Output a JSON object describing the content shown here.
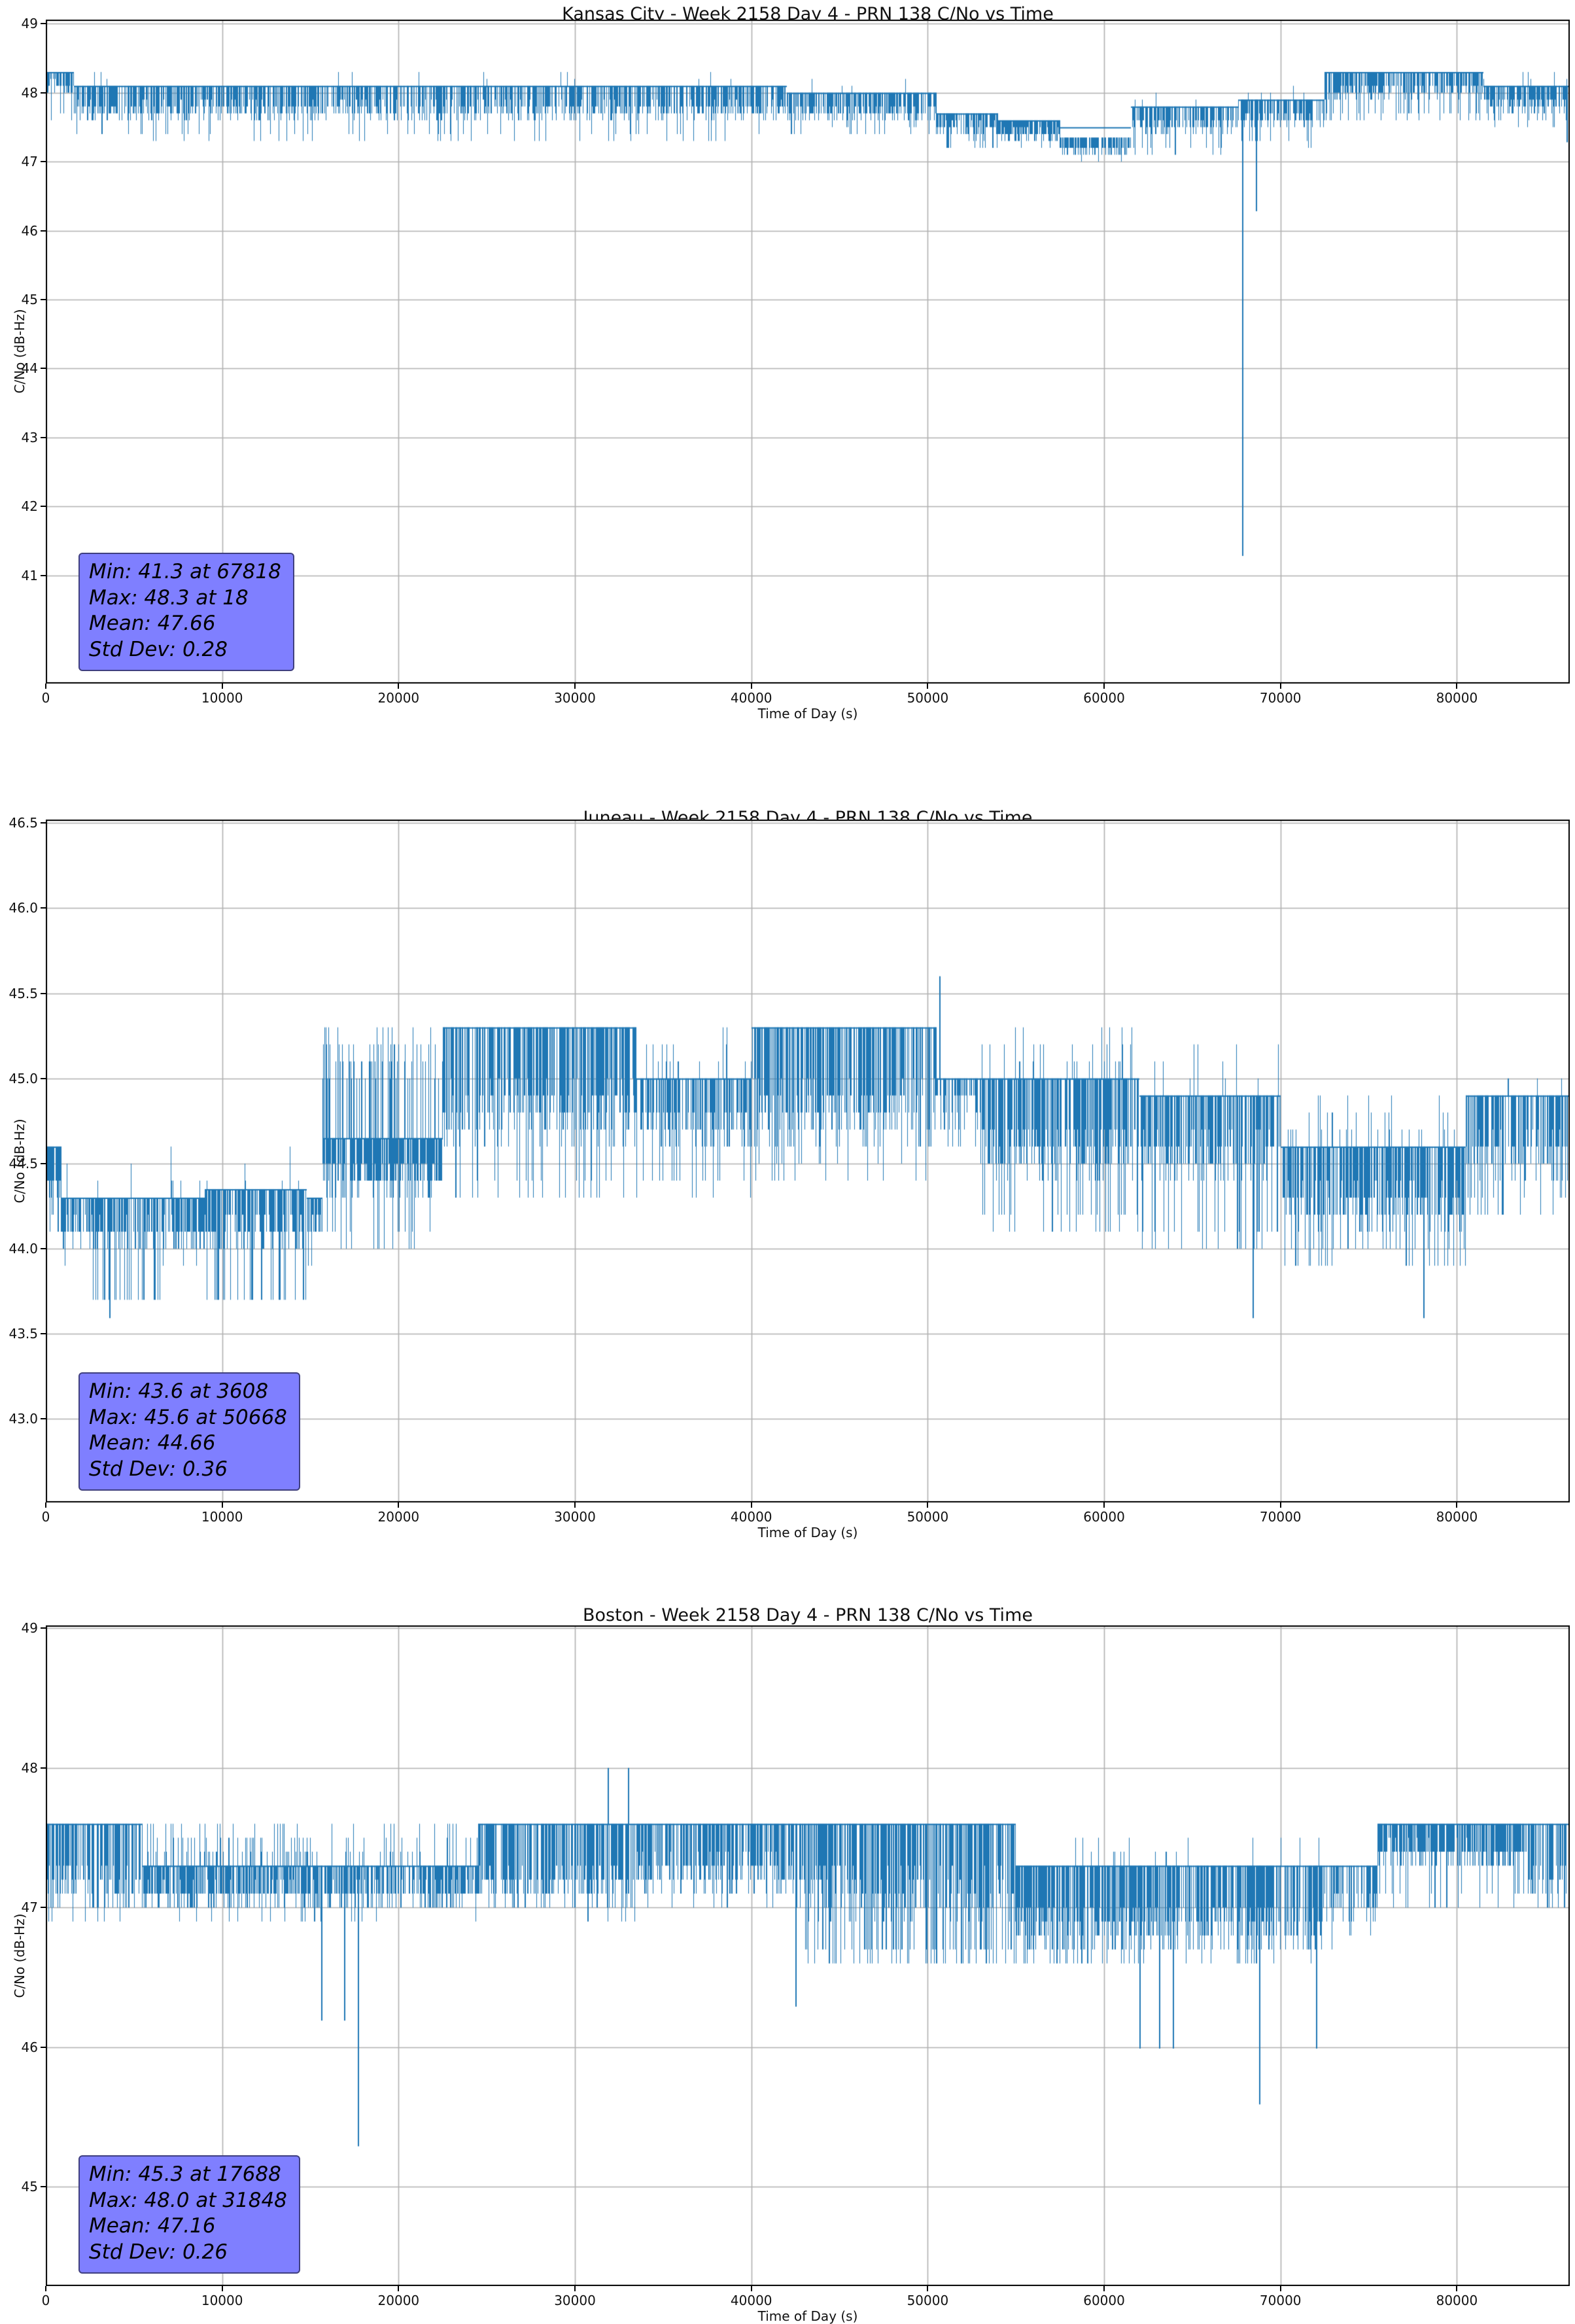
{
  "page": {
    "background": "#ffffff"
  },
  "chart_data": [
    {
      "type": "line",
      "title": "Kansas City - Week 2158 Day 4 - PRN 138 C/No vs Time",
      "xlabel": "Time of Day (s)",
      "ylabel": "C/No (dB-Hz)",
      "line_color": "#1f77b4",
      "grid_color": "#b0b0b0",
      "grid": true,
      "legend_position": "none",
      "xlim": [
        0,
        86400
      ],
      "ylim": [
        39.43,
        49.06
      ],
      "xticks": [
        0,
        10000,
        20000,
        30000,
        40000,
        50000,
        60000,
        70000,
        80000
      ],
      "yticks": [
        41,
        42,
        43,
        44,
        45,
        46,
        47,
        48,
        49
      ],
      "ytick_decimals": 0,
      "stats": {
        "min": 41.3,
        "min_time": 67818,
        "max": 48.3,
        "max_time": 18,
        "mean": 47.66,
        "std_dev": 0.28,
        "lines": [
          "Min: 41.3 at 67818",
          "Max: 48.3 at 18",
          "Mean: 47.66",
          "Std Dev: 0.28"
        ],
        "box_fill": "#7f7fff",
        "box_border": "rgba(0,0,0,0.5)"
      },
      "estimated_envelope": {
        "note": "piecewise band envelope read from pixels; values quantized to 0.1 dB",
        "segments": [
          {
            "t0": 0,
            "t1": 1600,
            "hi": 48.3,
            "lo": 48.0,
            "dlo": 47.6,
            "gap": 0.2,
            "deep": 0.12
          },
          {
            "t0": 1600,
            "t1": 15000,
            "hi": 48.1,
            "lo": 47.6,
            "dlo": 47.3,
            "gap": 0.3,
            "deep": 0.15,
            "up": 48.3,
            "pup": 0.03
          },
          {
            "t0": 15000,
            "t1": 42000,
            "hi": 48.1,
            "lo": 47.6,
            "dlo": 47.3,
            "gap": 0.35,
            "deep": 0.1,
            "up": 48.35,
            "pup": 0.04
          },
          {
            "t0": 42000,
            "t1": 50500,
            "hi": 48.0,
            "lo": 47.6,
            "dlo": 47.4,
            "gap": 0.3,
            "deep": 0.15,
            "up": 48.2,
            "pup": 0.02
          },
          {
            "t0": 50500,
            "t1": 54000,
            "hi": 47.7,
            "lo": 47.4,
            "dlo": 47.2,
            "gap": 0.3,
            "deep": 0.2
          },
          {
            "t0": 54000,
            "t1": 57500,
            "hi": 47.6,
            "lo": 47.3,
            "dlo": 47.2,
            "gap": 0.15,
            "deep": 0.1
          },
          {
            "t0": 57500,
            "t1": 61500,
            "hi": 47.5,
            "lo": 47.1,
            "dlo": 47.0,
            "gap": 0.3,
            "deep": 0.1,
            "top2": 47.35
          },
          {
            "t0": 61500,
            "t1": 67600,
            "hi": 47.8,
            "lo": 47.4,
            "dlo": 47.1,
            "gap": 0.3,
            "deep": 0.15,
            "up": 48.0,
            "pup": 0.05
          },
          {
            "t0": 67600,
            "t1": 72500,
            "hi": 47.9,
            "lo": 47.5,
            "dlo": 47.2,
            "gap": 0.3,
            "deep": 0.15,
            "up": 48.1,
            "pup": 0.06
          },
          {
            "t0": 72500,
            "t1": 81500,
            "hi": 48.3,
            "lo": 47.9,
            "dlo": 47.6,
            "gap": 0.3,
            "deep": 0.25
          },
          {
            "t0": 81500,
            "t1": 86400,
            "hi": 48.1,
            "lo": 47.7,
            "dlo": 47.5,
            "gap": 0.3,
            "deep": 0.15,
            "up": 48.3,
            "pup": 0.05
          }
        ],
        "spikes": [
          {
            "t": 67818,
            "v": 41.3
          },
          {
            "t": 68600,
            "v": 46.3
          },
          {
            "t": 86200,
            "v": 47.3
          }
        ]
      }
    },
    {
      "type": "line",
      "title": "Juneau - Week 2158 Day 4 - PRN 138 C/No vs Time",
      "xlabel": "Time of Day (s)",
      "ylabel": "C/No (dB-Hz)",
      "line_color": "#1f77b4",
      "grid_color": "#b0b0b0",
      "grid": true,
      "legend_position": "none",
      "xlim": [
        0,
        86400
      ],
      "ylim": [
        42.51,
        46.52
      ],
      "xticks": [
        0,
        10000,
        20000,
        30000,
        40000,
        50000,
        60000,
        70000,
        80000
      ],
      "yticks": [
        43.0,
        43.5,
        44.0,
        44.5,
        45.0,
        45.5,
        46.0,
        46.5
      ],
      "ytick_decimals": 1,
      "stats": {
        "min": 43.6,
        "min_time": 3608,
        "max": 45.6,
        "max_time": 50668,
        "mean": 44.66,
        "std_dev": 0.36,
        "lines": [
          "Min: 43.6 at 3608",
          "Max: 45.6 at 50668",
          "Mean: 44.66",
          "Std Dev: 0.36"
        ],
        "box_fill": "#7f7fff",
        "box_border": "rgba(0,0,0,0.5)"
      },
      "estimated_envelope": {
        "note": "piecewise band envelope read from pixels; values quantized to 0.1 dB",
        "segments": [
          {
            "t0": 0,
            "t1": 900,
            "hi": 44.6,
            "lo": 44.3,
            "dlo": 44.1,
            "gap": 0.15,
            "deep": 0.15
          },
          {
            "t0": 900,
            "t1": 2600,
            "hi": 44.3,
            "lo": 44.0,
            "dlo": 43.9,
            "gap": 0.25,
            "deep": 0.05,
            "up": 44.6,
            "pup": 0.04
          },
          {
            "t0": 2600,
            "t1": 6500,
            "hi": 44.3,
            "lo": 44.0,
            "dlo": 43.65,
            "gap": 0.25,
            "deep": 0.3,
            "up": 44.6,
            "pup": 0.02
          },
          {
            "t0": 6500,
            "t1": 9000,
            "hi": 44.3,
            "lo": 44.0,
            "dlo": 43.9,
            "gap": 0.25,
            "deep": 0.08,
            "up": 44.6,
            "pup": 0.05
          },
          {
            "t0": 9000,
            "t1": 14800,
            "hi": 44.35,
            "lo": 44.0,
            "dlo": 43.65,
            "gap": 0.25,
            "deep": 0.3,
            "up": 44.6,
            "pup": 0.03
          },
          {
            "t0": 14800,
            "t1": 15700,
            "hi": 44.3,
            "lo": 44.05,
            "dlo": 43.9,
            "gap": 0.25,
            "deep": 0.05
          },
          {
            "t0": 15700,
            "t1": 22500,
            "hi": 44.65,
            "lo": 44.3,
            "dlo": 44.0,
            "gap": 0.2,
            "deep": 0.1,
            "up": 45.3,
            "pup": 0.3
          },
          {
            "t0": 22500,
            "t1": 33500,
            "hi": 45.3,
            "lo": 44.6,
            "dlo": 44.3,
            "gap": 0.3,
            "deep": 0.12
          },
          {
            "t0": 33500,
            "t1": 40000,
            "hi": 45.0,
            "lo": 44.6,
            "dlo": 44.3,
            "gap": 0.3,
            "deep": 0.15,
            "up": 45.3,
            "pup": 0.1
          },
          {
            "t0": 40000,
            "t1": 50500,
            "hi": 45.3,
            "lo": 44.6,
            "dlo": 44.4,
            "gap": 0.3,
            "deep": 0.1
          },
          {
            "t0": 50500,
            "t1": 53000,
            "hi": 45.0,
            "lo": 44.8,
            "dlo": 44.6,
            "gap": 0.45,
            "deep": 0.2
          },
          {
            "t0": 53000,
            "t1": 62000,
            "hi": 45.0,
            "lo": 44.4,
            "dlo": 44.1,
            "gap": 0.3,
            "deep": 0.2,
            "up": 45.3,
            "pup": 0.1
          },
          {
            "t0": 62000,
            "t1": 70000,
            "hi": 44.9,
            "lo": 44.4,
            "dlo": 44.0,
            "gap": 0.3,
            "deep": 0.2,
            "up": 45.2,
            "pup": 0.05
          },
          {
            "t0": 70000,
            "t1": 80500,
            "hi": 44.6,
            "lo": 44.1,
            "dlo": 43.9,
            "gap": 0.3,
            "deep": 0.2,
            "up": 44.9,
            "pup": 0.12
          },
          {
            "t0": 80500,
            "t1": 86400,
            "hi": 44.9,
            "lo": 44.4,
            "dlo": 44.2,
            "gap": 0.35,
            "deep": 0.15,
            "up": 45.0,
            "pup": 0.06
          }
        ],
        "spikes": [
          {
            "t": 3608,
            "v": 43.6
          },
          {
            "t": 50668,
            "v": 45.6
          },
          {
            "t": 68400,
            "v": 43.6
          },
          {
            "t": 78100,
            "v": 43.6
          }
        ]
      }
    },
    {
      "type": "line",
      "title": "Boston - Week 2158 Day 4 - PRN 138 C/No vs Time",
      "xlabel": "Time of Day (s)",
      "ylabel": "C/No (dB-Hz)",
      "line_color": "#1f77b4",
      "grid_color": "#b0b0b0",
      "grid": true,
      "legend_position": "none",
      "xlim": [
        0,
        86400
      ],
      "ylim": [
        44.29,
        49.02
      ],
      "xticks": [
        0,
        10000,
        20000,
        30000,
        40000,
        50000,
        60000,
        70000,
        80000
      ],
      "yticks": [
        45,
        46,
        47,
        48,
        49
      ],
      "ytick_decimals": 0,
      "stats": {
        "min": 45.3,
        "min_time": 17688,
        "max": 48.0,
        "max_time": 31848,
        "mean": 47.16,
        "std_dev": 0.26,
        "lines": [
          "Min: 45.3 at 17688",
          "Max: 48.0 at 31848",
          "Mean: 47.16",
          "Std Dev: 0.26"
        ],
        "box_fill": "#7f7fff",
        "box_border": "rgba(0,0,0,0.5)"
      },
      "estimated_envelope": {
        "note": "piecewise band envelope read from pixels; values quantized to 0.1 dB",
        "segments": [
          {
            "t0": 0,
            "t1": 5500,
            "hi": 47.6,
            "lo": 47.0,
            "dlo": 46.9,
            "gap": 0.3,
            "deep": 0.1
          },
          {
            "t0": 5500,
            "t1": 15300,
            "hi": 47.3,
            "lo": 47.0,
            "dlo": 46.9,
            "gap": 0.25,
            "deep": 0.1,
            "up": 47.6,
            "pup": 0.3
          },
          {
            "t0": 15300,
            "t1": 18000,
            "hi": 47.3,
            "lo": 47.0,
            "dlo": 46.9,
            "gap": 0.25,
            "deep": 0.1,
            "up": 47.6,
            "pup": 0.2
          },
          {
            "t0": 18000,
            "t1": 24500,
            "hi": 47.3,
            "lo": 47.0,
            "dlo": 46.9,
            "gap": 0.3,
            "deep": 0.05,
            "up": 47.6,
            "pup": 0.2
          },
          {
            "t0": 24500,
            "t1": 33500,
            "hi": 47.6,
            "lo": 47.0,
            "dlo": 46.9,
            "gap": 0.3,
            "deep": 0.1
          },
          {
            "t0": 33500,
            "t1": 43000,
            "hi": 47.6,
            "lo": 47.1,
            "dlo": 47.0,
            "gap": 0.3,
            "deep": 0.1
          },
          {
            "t0": 43000,
            "t1": 55000,
            "hi": 47.6,
            "lo": 46.9,
            "dlo": 46.6,
            "gap": 0.25,
            "deep": 0.3
          },
          {
            "t0": 55000,
            "t1": 72500,
            "hi": 47.3,
            "lo": 46.7,
            "dlo": 46.6,
            "gap": 0.25,
            "deep": 0.2,
            "up": 47.5,
            "pup": 0.07
          },
          {
            "t0": 72500,
            "t1": 75500,
            "hi": 47.3,
            "lo": 46.9,
            "dlo": 46.7,
            "gap": 0.3,
            "deep": 0.1
          },
          {
            "t0": 75500,
            "t1": 84000,
            "hi": 47.6,
            "lo": 47.3,
            "dlo": 47.0,
            "gap": 0.25,
            "deep": 0.15
          },
          {
            "t0": 84000,
            "t1": 86400,
            "hi": 47.6,
            "lo": 47.0,
            "dlo": 46.9,
            "gap": 0.4,
            "deep": 0.2
          }
        ],
        "spikes": [
          {
            "t": 15600,
            "v": 46.2
          },
          {
            "t": 16900,
            "v": 46.2
          },
          {
            "t": 17688,
            "v": 45.3
          },
          {
            "t": 31848,
            "v": 48.0
          },
          {
            "t": 33000,
            "v": 48.0
          },
          {
            "t": 42500,
            "v": 46.3
          },
          {
            "t": 62000,
            "v": 46.0
          },
          {
            "t": 63100,
            "v": 46.0
          },
          {
            "t": 63900,
            "v": 46.0
          },
          {
            "t": 68800,
            "v": 45.6
          },
          {
            "t": 72000,
            "v": 46.0
          }
        ]
      }
    }
  ]
}
